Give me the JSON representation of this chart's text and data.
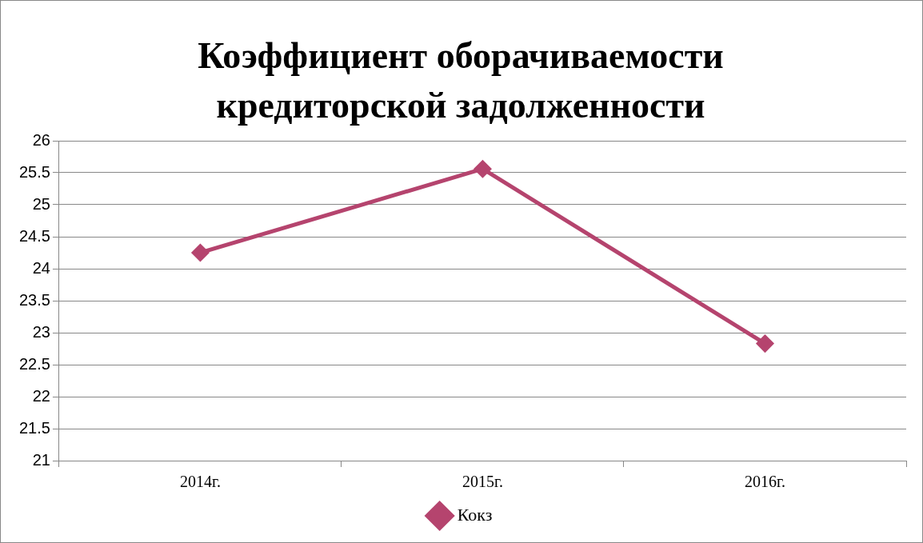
{
  "chart_data": {
    "type": "line",
    "title": "Коэффициент оборачиваемости кредиторской задолженности",
    "categories": [
      "2014г.",
      "2015г.",
      "2016г."
    ],
    "series": [
      {
        "name": "Кокз",
        "color": "#b5446e",
        "values": [
          24.25,
          25.56,
          22.83
        ]
      }
    ],
    "ylim": [
      21,
      26
    ],
    "yticks": [
      21,
      21.5,
      22,
      22.5,
      23,
      23.5,
      24,
      24.5,
      25,
      25.5,
      26
    ],
    "grid": "y",
    "legend": "bottom",
    "marker": "diamond",
    "line_style": "solid"
  }
}
